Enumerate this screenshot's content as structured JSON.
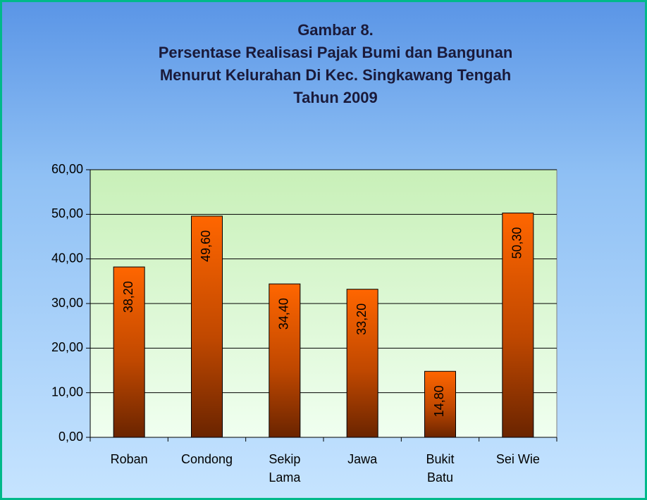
{
  "chart_data": {
    "type": "bar",
    "title": [
      "Gambar 8.",
      "Persentase Realisasi Pajak Bumi dan Bangunan",
      "Menurut Kelurahan  Di Kec. Singkawang Tengah",
      "Tahun 2009"
    ],
    "categories": [
      "Roban",
      "Condong",
      "Sekip\nLama",
      "Jawa",
      "Bukit\nBatu",
      "Sei Wie"
    ],
    "values": [
      38.2,
      49.6,
      34.4,
      33.2,
      14.8,
      50.3
    ],
    "value_labels": [
      "38,20",
      "49,60",
      "34,40",
      "33,20",
      "14,80",
      "50,30"
    ],
    "color": "#ff6600",
    "ylim": [
      0,
      60
    ],
    "yticks": [
      {
        "value": 0,
        "label": "0,00"
      },
      {
        "value": 10,
        "label": "10,00"
      },
      {
        "value": 20,
        "label": "20,00"
      },
      {
        "value": 30,
        "label": "30,00"
      },
      {
        "value": 40,
        "label": "40,00"
      },
      {
        "value": 50,
        "label": "50,00"
      },
      {
        "value": 60,
        "label": "60,00"
      }
    ],
    "grid": true
  }
}
